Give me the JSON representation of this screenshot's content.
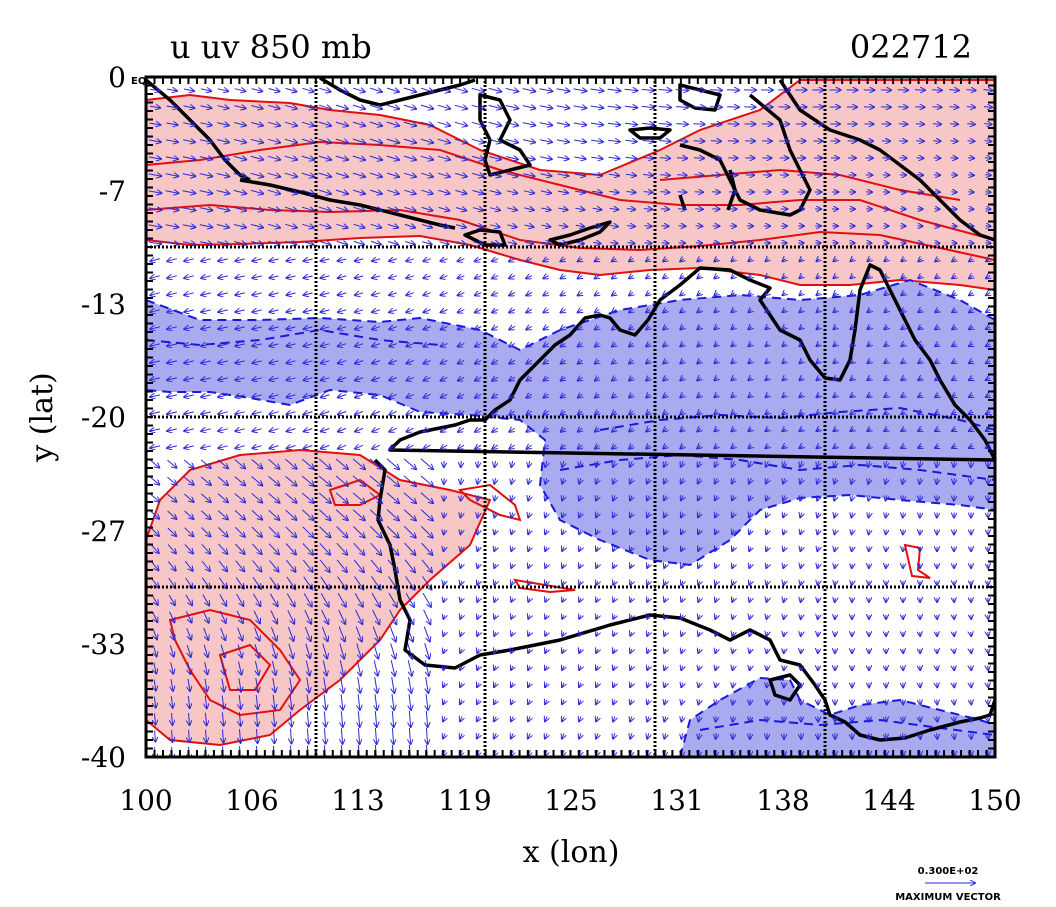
{
  "chart_data": {
    "type": "map",
    "title": "u uv 850 mb",
    "timestamp": "022712",
    "xlabel": "x (lon)",
    "ylabel": "y (lat)",
    "xlim": [
      100,
      150
    ],
    "ylim": [
      -40,
      0
    ],
    "xticks": [
      "100",
      "106",
      "113",
      "119",
      "125",
      "131",
      "138",
      "144",
      "150"
    ],
    "yticks": [
      "0",
      "-7",
      "-13",
      "-20",
      "-27",
      "-33",
      "-40"
    ],
    "corner_label": "EQ",
    "legend": {
      "value": "0.300E+02",
      "label": "MAXIMUM VECTOR"
    },
    "grid": true,
    "colors": {
      "positive": "#f7c6c6",
      "positive_line": "#e01010",
      "negative": "#aaaaf0",
      "negative_line": "#1818e0",
      "vector": "#2a2ad8",
      "coast": "#000000"
    }
  }
}
